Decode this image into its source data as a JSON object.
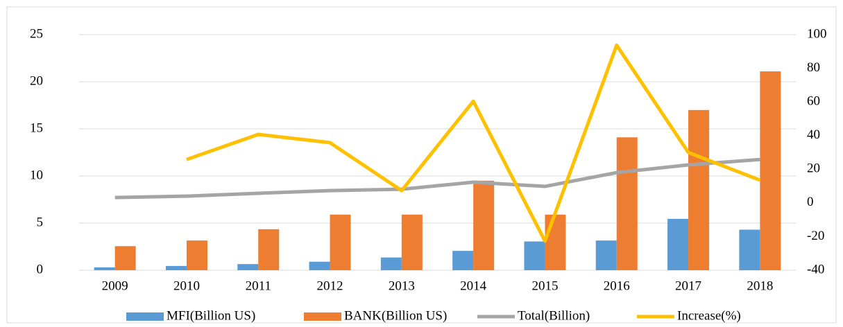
{
  "chart_data": {
    "type": "bar-line",
    "categories": [
      "2009",
      "2010",
      "2011",
      "2012",
      "2013",
      "2014",
      "2015",
      "2016",
      "2017",
      "2018"
    ],
    "series": [
      {
        "name": "MFI(Billion US)",
        "color": "#5b9bd5",
        "type": "bar",
        "values": [
          0.3,
          0.45,
          0.65,
          0.9,
          1.35,
          2.05,
          3.05,
          3.15,
          5.45,
          4.3
        ]
      },
      {
        "name": "BANK(Billion US)",
        "color": "#ed7d31",
        "type": "bar",
        "values": [
          2.55,
          3.15,
          4.35,
          5.9,
          5.9,
          9.5,
          5.9,
          14.1,
          17.0,
          21.1
        ]
      },
      {
        "name": "Total(Billion)",
        "color": "#a5a5a5",
        "type": "line",
        "axis": "y2",
        "values": [
          3.2,
          4.0,
          5.7,
          7.3,
          8.1,
          12.3,
          9.8,
          18,
          22.6,
          25.8
        ]
      },
      {
        "name": "Increase(%)",
        "color": "#ffc000",
        "type": "line",
        "axis": "y2",
        "values": [
          null,
          25.8,
          40.7,
          35.8,
          7.3,
          60.4,
          -22.7,
          93.7,
          30,
          13.5
        ]
      }
    ],
    "ylim": [
      0,
      25
    ],
    "yticks": [
      0,
      5,
      10,
      15,
      20,
      25
    ],
    "y2lim": [
      -40,
      100
    ],
    "y2ticks": [
      -40,
      -20,
      0,
      20,
      40,
      60,
      80,
      100
    ],
    "grid": true,
    "legend": "bottom"
  }
}
